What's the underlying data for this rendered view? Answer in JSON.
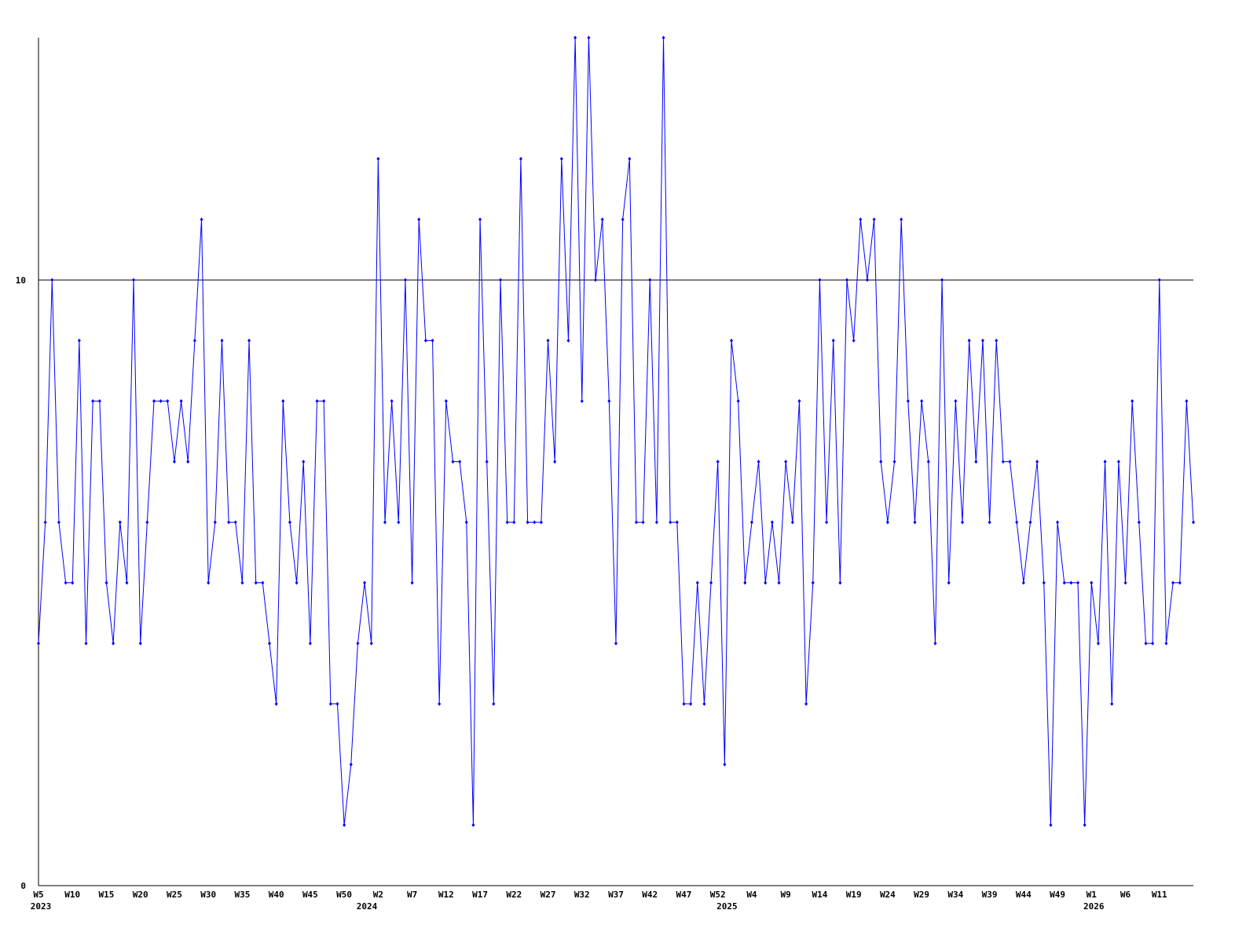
{
  "chart_data": {
    "type": "line",
    "categories": [
      "W5",
      null,
      null,
      null,
      null,
      "W10",
      null,
      null,
      null,
      null,
      "W15",
      null,
      null,
      null,
      null,
      "W20",
      null,
      null,
      null,
      null,
      "W25",
      null,
      null,
      null,
      null,
      "W30",
      null,
      null,
      null,
      null,
      "W35",
      null,
      null,
      null,
      null,
      "W40",
      null,
      null,
      null,
      null,
      "W45",
      null,
      null,
      null,
      null,
      "W50",
      null,
      null,
      null,
      null,
      "W2",
      null,
      null,
      null,
      null,
      "W7",
      null,
      null,
      null,
      null,
      "W12",
      null,
      null,
      null,
      null,
      "W17",
      null,
      null,
      null,
      null,
      "W22",
      null,
      null,
      null,
      null,
      "W27",
      null,
      null,
      null,
      null,
      "W32",
      null,
      null,
      null,
      null,
      "W37",
      null,
      null,
      null,
      null,
      "W42",
      null,
      null,
      null,
      null,
      "W47",
      null,
      null,
      null,
      null,
      "W52",
      null,
      null,
      null,
      null,
      "W4",
      null,
      null,
      null,
      null,
      "W9",
      null,
      null,
      null,
      null,
      "W14",
      null,
      null,
      null,
      null,
      "W19",
      null,
      null,
      null,
      null,
      "W24",
      null,
      null,
      null,
      null,
      "W29",
      null,
      null,
      null,
      null,
      "W34",
      null,
      null,
      null,
      null,
      "W39",
      null,
      null,
      null,
      null,
      "W44",
      null,
      null,
      null,
      null,
      "W49",
      null,
      null,
      null,
      null,
      "W1",
      null,
      null,
      null,
      null,
      "W6",
      null,
      null,
      null,
      null,
      "W11",
      null,
      null,
      null,
      null,
      null
    ],
    "year_categories": [
      "2023",
      null,
      null,
      null,
      null,
      null,
      null,
      null,
      null,
      null,
      null,
      null,
      null,
      null,
      null,
      null,
      null,
      null,
      null,
      null,
      null,
      null,
      null,
      null,
      null,
      null,
      null,
      null,
      null,
      null,
      null,
      null,
      null,
      null,
      null,
      null,
      null,
      null,
      null,
      null,
      null,
      null,
      null,
      null,
      null,
      null,
      null,
      null,
      "2024",
      null,
      null,
      null,
      null,
      null,
      null,
      null,
      null,
      null,
      null,
      null,
      null,
      null,
      null,
      null,
      null,
      null,
      null,
      null,
      null,
      null,
      null,
      null,
      null,
      null,
      null,
      null,
      null,
      null,
      null,
      null,
      null,
      null,
      null,
      null,
      null,
      null,
      null,
      null,
      null,
      null,
      null,
      null,
      null,
      null,
      null,
      null,
      null,
      null,
      null,
      null,
      null,
      "2025",
      null,
      null,
      null,
      null,
      null,
      null,
      null,
      null,
      null,
      null,
      null,
      null,
      null,
      null,
      null,
      null,
      null,
      null,
      null,
      null,
      null,
      null,
      null,
      null,
      null,
      null,
      null,
      null,
      null,
      null,
      null,
      null,
      null,
      null,
      null,
      null,
      null,
      null,
      null,
      null,
      null,
      null,
      null,
      null,
      null,
      null,
      null,
      null,
      null,
      null,
      null,
      null,
      null,
      "2026",
      null,
      null,
      null,
      null,
      null,
      null,
      null,
      null,
      null,
      null,
      null,
      null,
      null,
      null,
      null
    ],
    "values": [
      4,
      6,
      10,
      6,
      5,
      5,
      9,
      4,
      8,
      8,
      5,
      4,
      6,
      5,
      10,
      4,
      6,
      8,
      8,
      8,
      7,
      8,
      7,
      9,
      11,
      5,
      6,
      9,
      6,
      6,
      5,
      9,
      5,
      5,
      4,
      3,
      8,
      6,
      5,
      7,
      4,
      8,
      8,
      3,
      3,
      1,
      2,
      4,
      5,
      4,
      12,
      6,
      8,
      6,
      10,
      5,
      11,
      9,
      9,
      3,
      8,
      7,
      7,
      6,
      1,
      11,
      7,
      3,
      10,
      6,
      6,
      12,
      6,
      6,
      6,
      9,
      7,
      12,
      9,
      14,
      8,
      14,
      10,
      11,
      8,
      4,
      11,
      12,
      6,
      6,
      10,
      6,
      14,
      6,
      6,
      3,
      3,
      5,
      3,
      5,
      7,
      2,
      9,
      8,
      5,
      6,
      7,
      5,
      6,
      5,
      7,
      6,
      8,
      3,
      5,
      10,
      6,
      9,
      5,
      10,
      9,
      11,
      10,
      11,
      7,
      6,
      7,
      11,
      8,
      6,
      8,
      7,
      4,
      10,
      5,
      8,
      6,
      9,
      7,
      9,
      6,
      9,
      7,
      7,
      6,
      5,
      6,
      7,
      5,
      1,
      6,
      5,
      5,
      5,
      1,
      5,
      4,
      7,
      3,
      7,
      5,
      8,
      6,
      4,
      4,
      10,
      4,
      5,
      5,
      8,
      6
    ],
    "color": "#0000ff",
    "ylim": [
      0,
      14
    ],
    "yticks": [
      0,
      10
    ],
    "grid": true
  }
}
